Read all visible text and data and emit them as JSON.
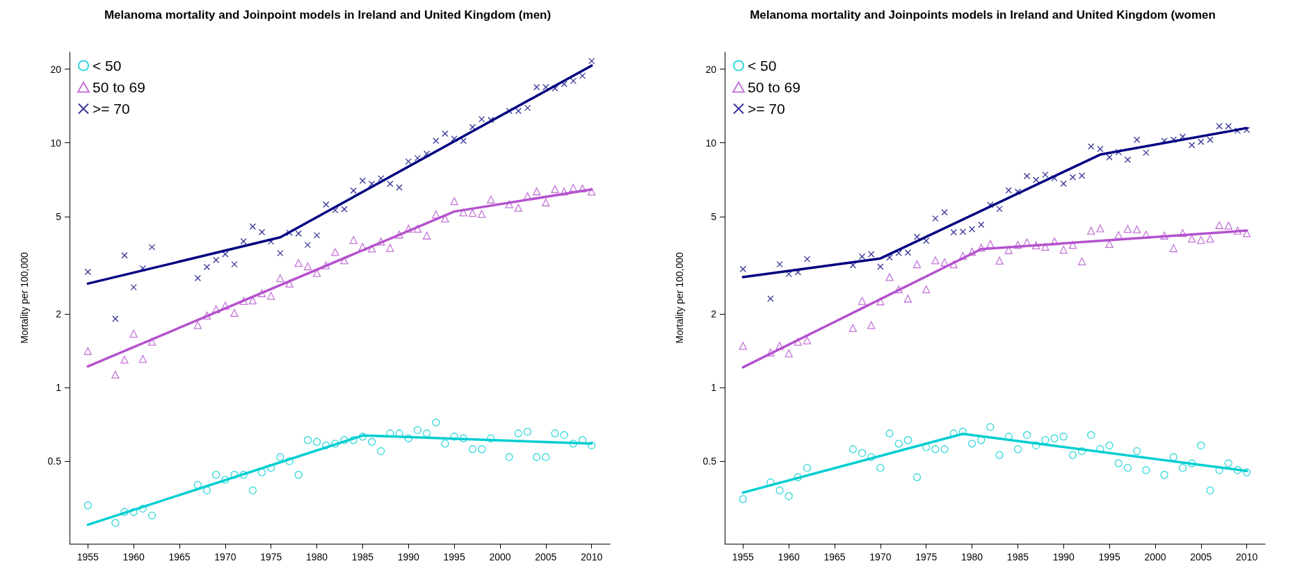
{
  "chart_data": [
    {
      "type": "scatter",
      "title": "Melanoma mortality and Joinpoint models in Ireland and United Kingdom (men)",
      "ylabel": "Mortality per 100,000",
      "x": [
        1955,
        1958,
        1959,
        1960,
        1961,
        1962,
        1967,
        1968,
        1969,
        1970,
        1971,
        1972,
        1973,
        1974,
        1975,
        1976,
        1977,
        1978,
        1979,
        1980,
        1981,
        1982,
        1983,
        1984,
        1985,
        1986,
        1987,
        1988,
        1989,
        1990,
        1991,
        1992,
        1993,
        1994,
        1995,
        1996,
        1997,
        1998,
        1999,
        2001,
        2002,
        2003,
        2004,
        2005,
        2006,
        2007,
        2008,
        2009,
        2010
      ],
      "series": [
        {
          "name": "< 50",
          "marker": "circle",
          "color": "#00ced1",
          "values": [
            0.33,
            0.28,
            0.31,
            0.31,
            0.32,
            0.3,
            0.4,
            0.38,
            0.44,
            0.42,
            0.44,
            0.44,
            0.38,
            0.45,
            0.47,
            0.52,
            0.5,
            0.44,
            0.61,
            0.6,
            0.58,
            0.59,
            0.61,
            0.61,
            0.63,
            0.6,
            0.55,
            0.65,
            0.65,
            0.62,
            0.67,
            0.65,
            0.72,
            0.59,
            0.63,
            0.62,
            0.56,
            0.56,
            0.62,
            0.52,
            0.65,
            0.66,
            0.52,
            0.52,
            0.65,
            0.64,
            0.59,
            0.61,
            0.58
          ]
        },
        {
          "name": "50 to 69",
          "marker": "triangle",
          "color": "#b452cd",
          "values": [
            1.41,
            1.13,
            1.3,
            1.66,
            1.31,
            1.54,
            1.8,
            1.97,
            2.09,
            2.16,
            2.02,
            2.26,
            2.27,
            2.43,
            2.37,
            2.8,
            2.66,
            3.23,
            3.13,
            2.94,
            3.16,
            3.58,
            3.31,
            4.01,
            3.76,
            3.7,
            3.95,
            3.72,
            4.22,
            4.46,
            4.46,
            4.18,
            5.1,
            4.91,
            5.78,
            5.2,
            5.17,
            5.12,
            5.87,
            5.61,
            5.43,
            6.06,
            6.34,
            5.71,
            6.47,
            6.32,
            6.55,
            6.51,
            6.32
          ]
        },
        {
          "name": ">= 70",
          "marker": "cross",
          "color": "#000080",
          "values": [
            2.97,
            1.91,
            3.47,
            2.57,
            3.07,
            3.75,
            2.8,
            3.11,
            3.32,
            3.51,
            3.19,
            3.96,
            4.55,
            4.32,
            3.95,
            3.54,
            4.29,
            4.26,
            3.83,
            4.19,
            5.6,
            5.31,
            5.36,
            6.38,
            7.0,
            6.8,
            7.16,
            6.8,
            6.57,
            8.39,
            8.67,
            9.02,
            10.2,
            10.9,
            10.4,
            10.2,
            11.6,
            12.5,
            12.4,
            13.5,
            13.5,
            13.9,
            16.9,
            16.9,
            16.7,
            17.4,
            17.9,
            18.8,
            21.6
          ]
        },
        {
          "type": "line",
          "marker": "none",
          "line_style": "solid",
          "color": "#00ced1",
          "x": [
            1955,
            1985,
            2010
          ],
          "values": [
            0.275,
            0.637,
            0.59
          ]
        },
        {
          "type": "line",
          "marker": "none",
          "line_style": "solid",
          "color": "#b452cd",
          "x": [
            1955,
            1995,
            2010
          ],
          "values": [
            1.22,
            5.24,
            6.45
          ]
        },
        {
          "type": "line",
          "marker": "none",
          "line_style": "solid",
          "color": "#000080",
          "x": [
            1955,
            1976,
            2010
          ],
          "values": [
            2.66,
            4.11,
            20.7
          ]
        }
      ],
      "log": "y",
      "xlim": [
        1953,
        2012
      ],
      "xticks": [
        1955,
        1960,
        1965,
        1970,
        1975,
        1980,
        1985,
        1990,
        1995,
        2000,
        2005,
        2010
      ],
      "ylim": [
        0.23,
        23.5
      ],
      "yticks": [
        0.5,
        1,
        2,
        5,
        10,
        20
      ],
      "grid": false,
      "legend": "top left"
    },
    {
      "type": "scatter",
      "title": "Melanoma mortality and Joinpoints models in Ireland and United Kingdom (women",
      "ylabel": "Mortality per 100,000",
      "x": [
        1955,
        1958,
        1959,
        1960,
        1961,
        1962,
        1967,
        1968,
        1969,
        1970,
        1971,
        1972,
        1973,
        1974,
        1975,
        1976,
        1977,
        1978,
        1979,
        1980,
        1981,
        1982,
        1983,
        1984,
        1985,
        1986,
        1987,
        1988,
        1989,
        1990,
        1991,
        1992,
        1993,
        1994,
        1995,
        1996,
        1997,
        1998,
        1999,
        2001,
        2002,
        2003,
        2004,
        2005,
        2006,
        2007,
        2008,
        2009,
        2010
      ],
      "series": [
        {
          "name": "< 50",
          "marker": "circle",
          "color": "#00ced1",
          "values": [
            0.35,
            0.41,
            0.38,
            0.36,
            0.43,
            0.47,
            0.56,
            0.54,
            0.52,
            0.47,
            0.65,
            0.59,
            0.61,
            0.43,
            0.57,
            0.56,
            0.56,
            0.65,
            0.66,
            0.59,
            0.61,
            0.69,
            0.53,
            0.63,
            0.56,
            0.64,
            0.58,
            0.61,
            0.62,
            0.63,
            0.53,
            0.55,
            0.64,
            0.56,
            0.58,
            0.49,
            0.47,
            0.55,
            0.46,
            0.44,
            0.52,
            0.47,
            0.49,
            0.58,
            0.38,
            0.46,
            0.49,
            0.46,
            0.45
          ]
        },
        {
          "name": "50 to 69",
          "marker": "triangle",
          "color": "#b452cd",
          "values": [
            1.48,
            1.39,
            1.48,
            1.38,
            1.54,
            1.56,
            1.75,
            2.26,
            1.8,
            2.25,
            2.83,
            2.52,
            2.31,
            3.19,
            2.52,
            3.31,
            3.25,
            3.19,
            3.45,
            3.59,
            3.73,
            3.86,
            3.3,
            3.65,
            3.83,
            3.92,
            3.81,
            3.76,
            3.96,
            3.66,
            3.83,
            3.28,
            4.38,
            4.47,
            3.86,
            4.2,
            4.45,
            4.43,
            4.22,
            4.18,
            3.71,
            4.28,
            4.06,
            4.01,
            4.06,
            4.61,
            4.59,
            4.38,
            4.27
          ]
        },
        {
          "name": ">= 70",
          "marker": "cross",
          "color": "#000080",
          "values": [
            3.05,
            2.31,
            3.19,
            2.91,
            2.96,
            3.35,
            3.16,
            3.43,
            3.51,
            3.12,
            3.4,
            3.55,
            3.56,
            4.13,
            3.98,
            4.91,
            5.2,
            4.31,
            4.33,
            4.44,
            4.63,
            5.58,
            5.37,
            6.4,
            6.32,
            7.32,
            7.06,
            7.41,
            7.17,
            6.81,
            7.24,
            7.34,
            9.66,
            9.44,
            8.73,
            9.17,
            8.53,
            10.3,
            9.12,
            10.2,
            10.3,
            10.6,
            9.79,
            10.1,
            10.3,
            11.7,
            11.7,
            11.2,
            11.3
          ]
        },
        {
          "type": "line",
          "marker": "none",
          "line_style": "solid",
          "color": "#00ced1",
          "x": [
            1955,
            1979,
            2010
          ],
          "values": [
            0.372,
            0.647,
            0.456
          ]
        },
        {
          "type": "line",
          "marker": "none",
          "line_style": "solid",
          "color": "#b452cd",
          "x": [
            1955,
            1981,
            2010
          ],
          "values": [
            1.21,
            3.68,
            4.38
          ]
        },
        {
          "type": "line",
          "marker": "none",
          "line_style": "solid",
          "color": "#000080",
          "x": [
            1955,
            1970,
            1994,
            2010
          ],
          "values": [
            2.83,
            3.37,
            8.96,
            11.5
          ]
        }
      ],
      "log": "y",
      "xlim": [
        1953,
        2012
      ],
      "xticks": [
        1955,
        1960,
        1965,
        1970,
        1975,
        1980,
        1985,
        1990,
        1995,
        2000,
        2005,
        2010
      ],
      "ylim": [
        0.23,
        23.5
      ],
      "yticks": [
        0.5,
        1,
        2,
        5,
        10,
        20
      ],
      "grid": false,
      "legend": "top left"
    }
  ]
}
